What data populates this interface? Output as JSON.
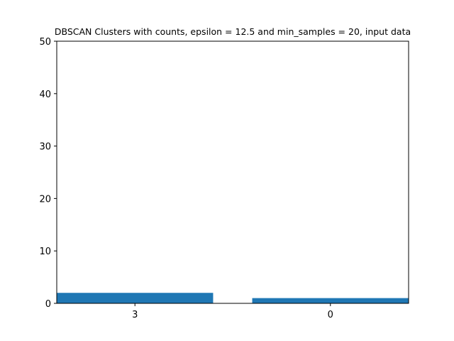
{
  "chart_data": {
    "type": "bar",
    "title": "DBSCAN Clusters with counts, epsilon = 12.5 and min_samples = 20, input data",
    "xlabel": "",
    "ylabel": "",
    "categories": [
      "3",
      "0"
    ],
    "values": [
      2,
      1
    ],
    "ylim": [
      0,
      50
    ],
    "yticks": [
      0,
      10,
      20,
      30,
      40,
      50
    ],
    "grid": false,
    "bar_color": "#1f77b4"
  }
}
